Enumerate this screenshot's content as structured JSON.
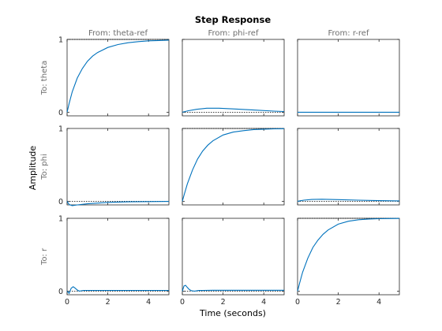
{
  "chart_data": {
    "type": "line",
    "title": "Step Response",
    "xlabel": "Time (seconds)",
    "ylabel": "Amplitude",
    "inputs": [
      "From: theta-ref",
      "From: phi-ref",
      "From: r-ref"
    ],
    "outputs": [
      "To: theta",
      "To: phi",
      "To: r"
    ],
    "xlim": [
      0,
      5
    ],
    "x_ticks": [
      0,
      2,
      4
    ],
    "x_tick_labels": [
      "0",
      "2",
      "4"
    ],
    "y_ticks": [
      0,
      1
    ],
    "y_tick_labels": [
      "0",
      "1"
    ],
    "ylim": [
      -0.05,
      1.0
    ],
    "color": "#0072bd",
    "reference_lines": [
      [
        1,
        0,
        0
      ],
      [
        0,
        1,
        0
      ],
      [
        0,
        0,
        1
      ]
    ],
    "series": [
      [
        {
          "name": "",
          "x": [
            0,
            0.1,
            0.25,
            0.5,
            0.75,
            1,
            1.25,
            1.5,
            2,
            2.5,
            3,
            3.5,
            4,
            4.5,
            5
          ],
          "y": [
            0,
            0.12,
            0.28,
            0.47,
            0.6,
            0.7,
            0.77,
            0.82,
            0.89,
            0.93,
            0.955,
            0.97,
            0.98,
            0.985,
            0.99
          ]
        },
        {
          "name": "",
          "x": [
            0,
            0.3,
            0.7,
            1.2,
            1.8,
            2.5,
            3.5,
            4.5,
            5
          ],
          "y": [
            0,
            0.02,
            0.04,
            0.055,
            0.055,
            0.045,
            0.03,
            0.015,
            0.01
          ]
        },
        {
          "name": "",
          "x": [
            0,
            1,
            2,
            3,
            4,
            5
          ],
          "y": [
            0,
            0,
            0,
            0,
            0,
            0
          ]
        }
      ],
      [
        {
          "name": "",
          "x": [
            0,
            0.1,
            0.25,
            0.5,
            1,
            1.5,
            2,
            3,
            4,
            5
          ],
          "y": [
            0,
            -0.045,
            -0.06,
            -0.05,
            -0.035,
            -0.025,
            -0.015,
            -0.008,
            -0.004,
            -0.002
          ]
        },
        {
          "name": "",
          "x": [
            0,
            0.1,
            0.25,
            0.5,
            0.75,
            1,
            1.25,
            1.5,
            2,
            2.5,
            3,
            3.5,
            4,
            4.5,
            5
          ],
          "y": [
            0,
            0.1,
            0.24,
            0.43,
            0.58,
            0.69,
            0.77,
            0.83,
            0.91,
            0.95,
            0.97,
            0.985,
            0.99,
            0.995,
            0.997
          ]
        },
        {
          "name": "",
          "x": [
            0,
            0.3,
            0.7,
            1.2,
            2,
            3,
            4,
            5
          ],
          "y": [
            0,
            0.015,
            0.025,
            0.028,
            0.022,
            0.015,
            0.008,
            0.005
          ]
        }
      ],
      [
        {
          "name": "",
          "x": [
            0,
            0.1,
            0.2,
            0.3,
            0.4,
            0.5,
            0.6,
            0.8,
            1,
            1.5,
            2,
            3,
            4,
            5
          ],
          "y": [
            0,
            -0.03,
            0.04,
            0.06,
            0.04,
            0.015,
            0.0,
            0.01,
            0.01,
            0.01,
            0.01,
            0.01,
            0.01,
            0.01
          ]
        },
        {
          "name": "",
          "x": [
            0,
            0.08,
            0.16,
            0.25,
            0.35,
            0.45,
            0.6,
            0.8,
            1,
            1.5,
            2,
            3,
            4,
            5
          ],
          "y": [
            0,
            0.07,
            0.08,
            0.05,
            0.02,
            0.005,
            0.0,
            0.008,
            0.01,
            0.012,
            0.012,
            0.012,
            0.012,
            0.012
          ]
        },
        {
          "name": "",
          "x": [
            0,
            0.1,
            0.25,
            0.5,
            0.75,
            1,
            1.25,
            1.5,
            2,
            2.5,
            3,
            3.5,
            4,
            4.5,
            5
          ],
          "y": [
            0,
            0.11,
            0.26,
            0.45,
            0.6,
            0.7,
            0.78,
            0.84,
            0.92,
            0.96,
            0.98,
            0.99,
            0.995,
            0.997,
            0.998
          ]
        }
      ]
    ],
    "grid": false,
    "legend": "none"
  }
}
